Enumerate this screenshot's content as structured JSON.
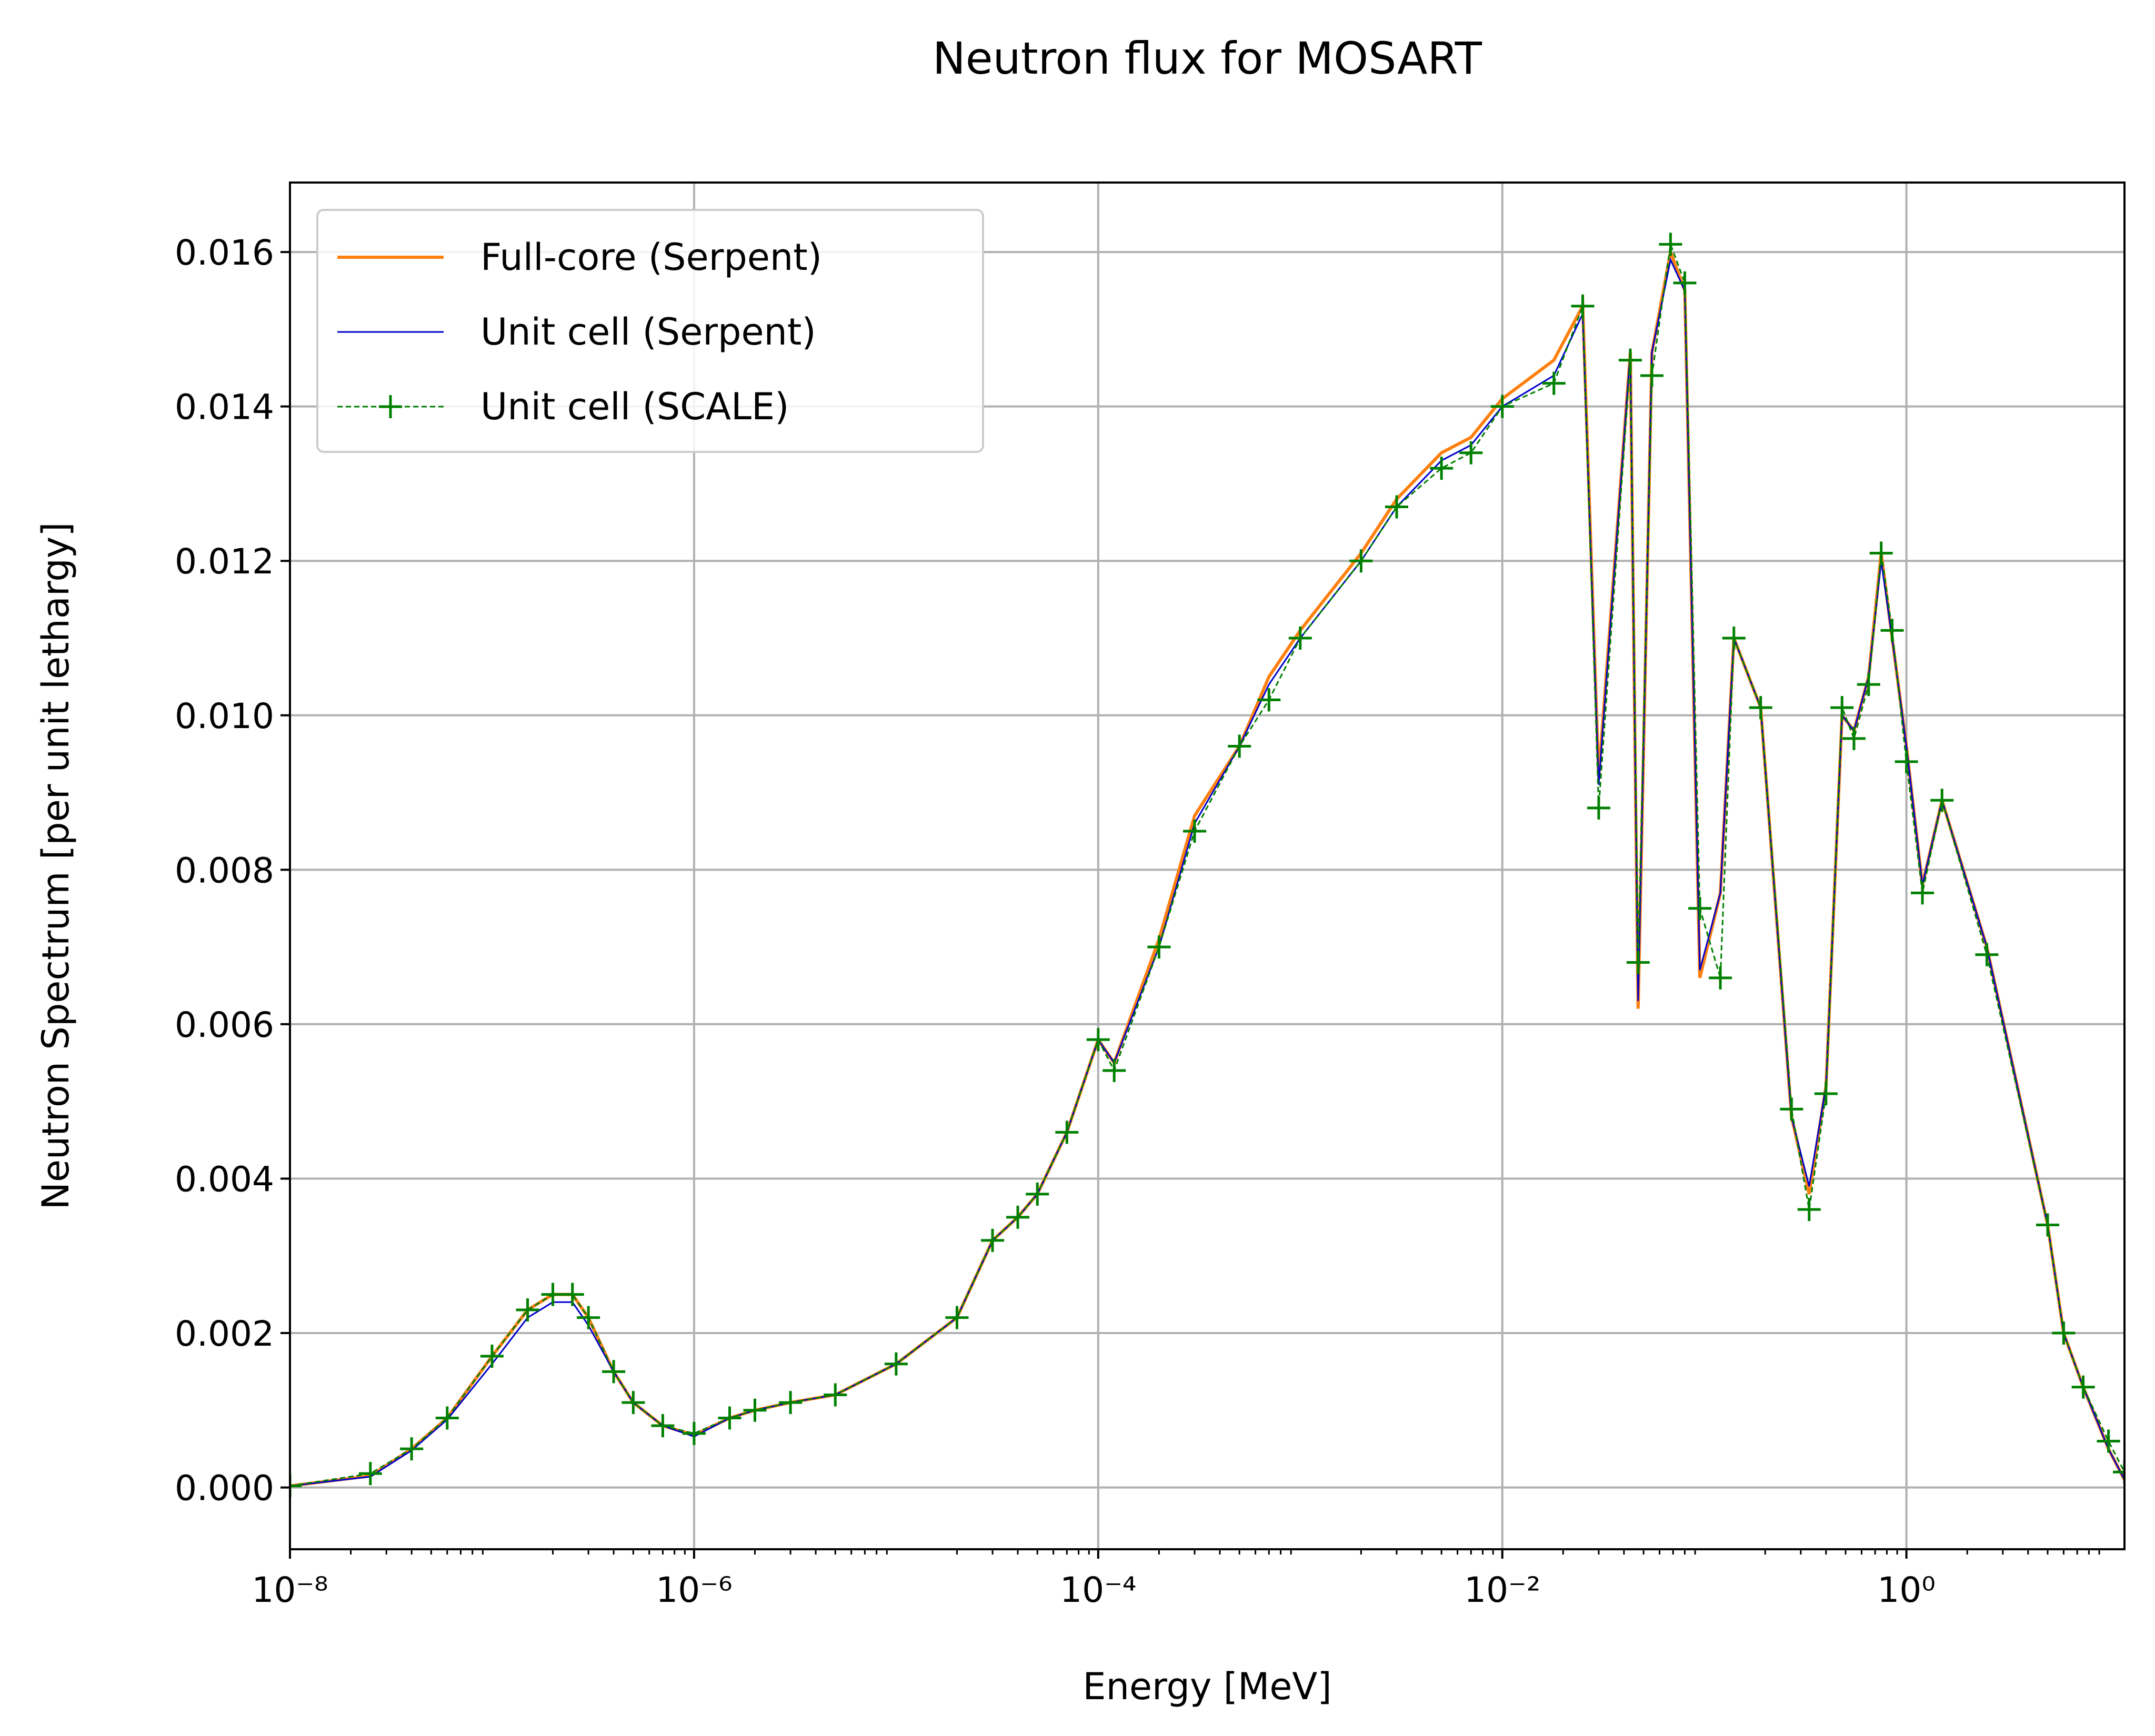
{
  "chart_data": {
    "type": "line",
    "title": "Neutron flux for MOSART",
    "xlabel": "Energy [MeV]",
    "ylabel": "Neutron Spectrum [per unit lethargy]",
    "xscale": "log",
    "grid": true,
    "legend": "upper left",
    "xlim": [
      1e-08,
      12
    ],
    "ylim": [
      -0.0008,
      0.0169
    ],
    "xticks": [
      {
        "value": 1e-08,
        "label": "10⁻⁸"
      },
      {
        "value": 1e-06,
        "label": "10⁻⁶"
      },
      {
        "value": 0.0001,
        "label": "10⁻⁴"
      },
      {
        "value": 0.01,
        "label": "10⁻²"
      },
      {
        "value": 1,
        "label": "10⁰"
      }
    ],
    "yticks": [
      {
        "value": 0,
        "label": "0.000"
      },
      {
        "value": 0.002,
        "label": "0.002"
      },
      {
        "value": 0.004,
        "label": "0.004"
      },
      {
        "value": 0.006,
        "label": "0.006"
      },
      {
        "value": 0.008,
        "label": "0.008"
      },
      {
        "value": 0.01,
        "label": "0.010"
      },
      {
        "value": 0.012,
        "label": "0.012"
      },
      {
        "value": 0.014,
        "label": "0.014"
      },
      {
        "value": 0.016,
        "label": "0.016"
      }
    ],
    "x": [
      1e-08,
      2.5e-08,
      4e-08,
      6e-08,
      1e-07,
      1.5e-07,
      2e-07,
      2.5e-07,
      3e-07,
      4e-07,
      5e-07,
      7e-07,
      1e-06,
      1.5e-06,
      2e-06,
      3e-06,
      5e-06,
      1e-05,
      2e-05,
      3e-05,
      4e-05,
      5e-05,
      7e-05,
      0.0001,
      0.00012,
      0.0002,
      0.0003,
      0.0005,
      0.0007,
      0.001,
      0.002,
      0.003,
      0.005,
      0.007,
      0.01,
      0.018,
      0.025,
      0.03,
      0.043,
      0.047,
      0.055,
      0.068,
      0.08,
      0.095,
      0.12,
      0.14,
      0.19,
      0.27,
      0.33,
      0.4,
      0.48,
      0.55,
      0.65,
      0.75,
      0.85,
      1,
      1.2,
      1.5,
      2.5,
      5,
      6,
      7.5,
      10,
      12
    ],
    "series": [
      {
        "name": "Full-core (Serpent)",
        "color": "#ff7f0e",
        "style": "solid",
        "marker": null,
        "values": [
          2e-05,
          0.00015,
          0.0005,
          0.0009,
          0.0017,
          0.0023,
          0.0025,
          0.0025,
          0.0022,
          0.0015,
          0.0011,
          0.0008,
          0.00068,
          0.0009,
          0.001,
          0.0011,
          0.0012,
          0.0016,
          0.0022,
          0.0032,
          0.0035,
          0.0038,
          0.0046,
          0.0058,
          0.0055,
          0.0071,
          0.0087,
          0.0096,
          0.0105,
          0.0111,
          0.0121,
          0.0128,
          0.0134,
          0.0136,
          0.0141,
          0.0146,
          0.0153,
          0.0092,
          0.0147,
          0.0062,
          0.0147,
          0.016,
          0.0155,
          0.0066,
          0.0077,
          0.011,
          0.0101,
          0.0048,
          0.0038,
          0.0052,
          0.01,
          0.0098,
          0.0105,
          0.0121,
          0.011,
          0.0096,
          0.0078,
          0.0089,
          0.007,
          0.0034,
          0.002,
          0.0013,
          0.0005,
          0.0001
        ]
      },
      {
        "name": "Unit cell (Serpent)",
        "color": "#0000cc",
        "style": "solid",
        "marker": null,
        "values": [
          2e-05,
          0.00014,
          0.00048,
          0.00088,
          0.0016,
          0.0022,
          0.0024,
          0.0024,
          0.0021,
          0.0015,
          0.0011,
          0.0008,
          0.00066,
          0.0009,
          0.001,
          0.0011,
          0.0012,
          0.0016,
          0.0022,
          0.0032,
          0.0035,
          0.0038,
          0.0046,
          0.0058,
          0.0055,
          0.007,
          0.0086,
          0.0096,
          0.0104,
          0.011,
          0.012,
          0.0127,
          0.0133,
          0.0135,
          0.014,
          0.0144,
          0.0152,
          0.0091,
          0.0147,
          0.0063,
          0.0147,
          0.0159,
          0.0155,
          0.0067,
          0.0077,
          0.011,
          0.0101,
          0.0048,
          0.0039,
          0.0052,
          0.01,
          0.0098,
          0.0105,
          0.012,
          0.011,
          0.0096,
          0.0078,
          0.0089,
          0.007,
          0.0034,
          0.002,
          0.0013,
          0.0005,
          0.0001
        ]
      },
      {
        "name": "Unit cell (SCALE)",
        "color": "#008000",
        "style": "dashed",
        "marker": "+",
        "values": [
          2e-05,
          0.00018,
          0.0005,
          0.0009,
          0.0017,
          0.0023,
          0.0025,
          0.0025,
          0.0022,
          0.0015,
          0.0011,
          0.0008,
          0.0007,
          0.0009,
          0.001,
          0.0011,
          0.0012,
          0.0016,
          0.0022,
          0.0032,
          0.0035,
          0.0038,
          0.0046,
          0.0058,
          0.0054,
          0.007,
          0.0085,
          0.0096,
          0.0102,
          0.011,
          0.012,
          0.0127,
          0.0132,
          0.0134,
          0.014,
          0.0143,
          0.0153,
          0.0088,
          0.0146,
          0.0068,
          0.0144,
          0.0161,
          0.0156,
          0.0075,
          0.0066,
          0.011,
          0.0101,
          0.0049,
          0.0036,
          0.0051,
          0.0101,
          0.0097,
          0.0104,
          0.0121,
          0.0111,
          0.0094,
          0.0077,
          0.0089,
          0.0069,
          0.0034,
          0.002,
          0.0013,
          0.0006,
          0.0002
        ]
      }
    ]
  }
}
